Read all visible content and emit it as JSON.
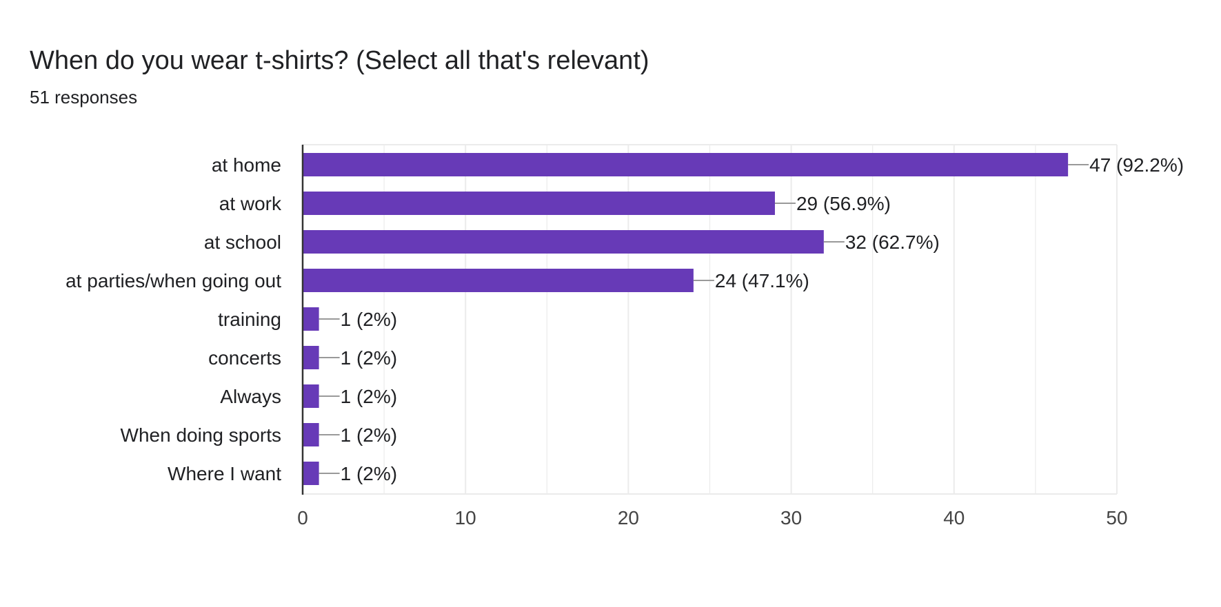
{
  "header": {
    "title": "When do you wear t-shirts? (Select all that's relevant)",
    "responses": "51 responses"
  },
  "chart_data": {
    "type": "bar",
    "orientation": "horizontal",
    "categories": [
      "at home",
      "at work",
      "at school",
      "at parties/when going out",
      "training",
      "concerts",
      "Always",
      "When doing sports",
      "Where I want"
    ],
    "values": [
      47,
      29,
      32,
      24,
      1,
      1,
      1,
      1,
      1
    ],
    "data_labels": [
      "47 (92.2%)",
      "29 (56.9%)",
      "32 (62.7%)",
      "24 (47.1%)",
      "1 (2%)",
      "1 (2%)",
      "1 (2%)",
      "1 (2%)",
      "1 (2%)"
    ],
    "xlim": [
      0,
      50
    ],
    "x_ticks": [
      0,
      10,
      20,
      30,
      40,
      50
    ],
    "grid": true,
    "legend": "none",
    "colors": {
      "bar": "#673ab7",
      "grid": "#ebebeb",
      "axis": "#333333",
      "leader": "#999999"
    }
  }
}
